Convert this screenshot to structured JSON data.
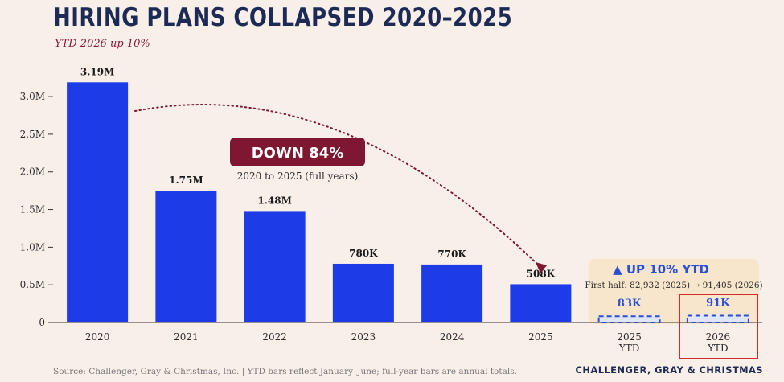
{
  "chart_data": {
    "type": "bar",
    "title": "HIRING PLANS COLLAPSED 2020–2025",
    "subtitle": "YTD 2026 up 10%",
    "categories": [
      "2020",
      "2021",
      "2022",
      "2023",
      "2024",
      "2025",
      "2025\nYTD",
      "2026\nYTD"
    ],
    "values": [
      3190000,
      1750000,
      1480000,
      780000,
      770000,
      508000,
      83000,
      91000
    ],
    "data_labels": [
      "3.19M",
      "1.75M",
      "1.48M",
      "780K",
      "770K",
      "508K",
      "83K",
      "91K"
    ],
    "ytd_flags": [
      false,
      false,
      false,
      false,
      false,
      false,
      true,
      true
    ],
    "ylim": [
      0,
      3300000
    ],
    "yticks": [
      0,
      500000,
      1000000,
      1500000,
      2000000,
      2500000,
      3000000
    ],
    "ytick_labels": [
      "0",
      "0.5M",
      "1.0M",
      "1.5M",
      "2.0M",
      "2.5M",
      "3.0M"
    ],
    "grid": false,
    "annotations": {
      "down_badge": "DOWN 84%",
      "down_note": "2020 to 2025 (full years)",
      "up_label": "▲ UP 10% YTD",
      "up_note": "First half: 82,932 (2025) → 91,405 (2026)"
    },
    "colors": {
      "bar": "#1d3be6",
      "ytd_bar": "#2a4fd6",
      "badge": "#7d1830",
      "dotted_arrow": "#7d1830",
      "ytd_panel": "#f8e6cc",
      "highlight_box": "#d42a2a",
      "axis_text": "#2b2b2b",
      "title": "#1c2a55"
    }
  },
  "footer": {
    "source": "Source: Challenger, Gray & Christmas, Inc. | YTD bars reflect January–June; full-year bars are annual totals.",
    "brand": "CHALLENGER, GRAY & CHRISTMAS"
  }
}
